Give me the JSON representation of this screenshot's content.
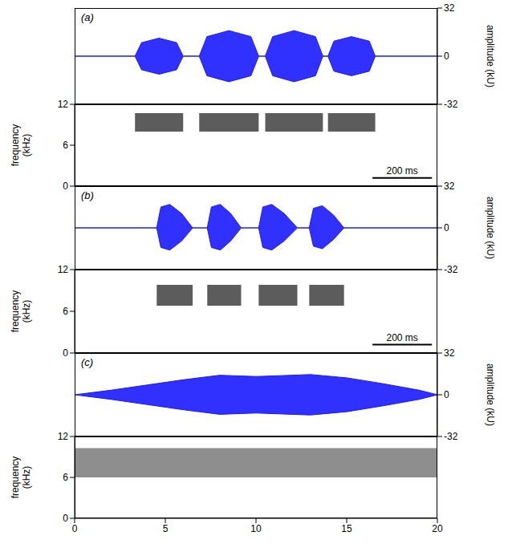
{
  "chart_data": [
    {
      "type": "area",
      "panel_label": "(a)",
      "ylabel": "amplitude (kU)",
      "xlim": [
        0,
        1220
      ],
      "ylim": [
        -32,
        32
      ],
      "yticks": [
        -32,
        0,
        32
      ],
      "tick_labels": "y",
      "color": "#1a1aff",
      "x": [
        0,
        203,
        225,
        284,
        343,
        365,
        419,
        445,
        519,
        593,
        619,
        641,
        666,
        738,
        810,
        835,
        852,
        872,
        931,
        991,
        1011,
        1220
      ],
      "upper": [
        0,
        0,
        9,
        12,
        9,
        0,
        0,
        13,
        17,
        13,
        0,
        0,
        13,
        17,
        13,
        0,
        0,
        10,
        13,
        10,
        0,
        0
      ],
      "lower": [
        0,
        0,
        -9,
        -12,
        -9,
        0,
        0,
        -13,
        -17,
        -13,
        0,
        0,
        -13,
        -17,
        -13,
        0,
        0,
        -10,
        -13,
        -10,
        0,
        0
      ]
    },
    {
      "type": "spectrogram",
      "ylabel": "frequency (kHz)",
      "xlim": [
        0,
        1220
      ],
      "ylim": [
        0,
        12
      ],
      "yticks": [
        0,
        6,
        12
      ],
      "tick_labels": "y",
      "color": "#404040",
      "cells": [
        {
          "t0": 203,
          "t1": 365,
          "f0": 8,
          "f1": 10.7
        },
        {
          "t0": 419,
          "t1": 619,
          "f0": 8,
          "f1": 10.7
        },
        {
          "t0": 641,
          "t1": 835,
          "f0": 8,
          "f1": 10.7
        },
        {
          "t0": 852,
          "t1": 1011,
          "f0": 8,
          "f1": 10.7
        }
      ],
      "scale_bar": {
        "value": 200,
        "label": "200 ms"
      }
    },
    {
      "type": "area",
      "panel_label": "(b)",
      "ylabel": "amplitude (kU)",
      "xlim": [
        0,
        1220
      ],
      "ylim": [
        -32,
        32
      ],
      "yticks": [
        -32,
        0,
        32
      ],
      "tick_labels": "y",
      "color": "#1a1aff",
      "x": [
        0,
        276,
        290,
        320,
        360,
        397,
        446,
        460,
        490,
        525,
        560,
        619,
        633,
        663,
        705,
        749,
        789,
        803,
        833,
        870,
        906,
        1220
      ],
      "upper": [
        0,
        0,
        16,
        18,
        11,
        0,
        0,
        16,
        18,
        11,
        0,
        0,
        16,
        18,
        11,
        0,
        0,
        15,
        17,
        10,
        0,
        0
      ],
      "lower": [
        0,
        0,
        -15,
        -17,
        -10,
        0,
        0,
        -15,
        -17,
        -10,
        0,
        0,
        -15,
        -17,
        -10,
        0,
        0,
        -14,
        -16,
        -9,
        0,
        0
      ]
    },
    {
      "type": "spectrogram",
      "ylabel": "frequency (kHz)",
      "xlim": [
        0,
        1220
      ],
      "ylim": [
        0,
        12
      ],
      "yticks": [
        0,
        6,
        12
      ],
      "tick_labels": "y",
      "color": "#404040",
      "cells": [
        {
          "t0": 276,
          "t1": 397,
          "f0": 6.8,
          "f1": 9.8
        },
        {
          "t0": 446,
          "t1": 560,
          "f0": 6.8,
          "f1": 9.8
        },
        {
          "t0": 619,
          "t1": 749,
          "f0": 6.8,
          "f1": 9.8
        },
        {
          "t0": 789,
          "t1": 906,
          "f0": 6.8,
          "f1": 9.8
        }
      ],
      "scale_bar": {
        "value": 200,
        "label": "200 ms"
      }
    },
    {
      "type": "area",
      "panel_label": "(c)",
      "ylabel": "amplitude (kU)",
      "xlim": [
        0,
        20
      ],
      "ylim": [
        -32,
        32
      ],
      "yticks": [
        -32,
        0,
        32
      ],
      "tick_labels": "y",
      "color": "#1a1aff",
      "x": [
        0,
        2,
        4,
        6,
        8,
        10,
        12,
        13,
        15,
        17,
        19,
        20
      ],
      "upper": [
        0,
        3.5,
        7.5,
        11.5,
        15,
        14,
        15,
        15.5,
        13,
        8.5,
        3.5,
        0
      ],
      "lower": [
        0,
        -3.5,
        -7.5,
        -11.5,
        -15,
        -14,
        -15,
        -15.5,
        -13,
        -8.5,
        -3.5,
        0
      ]
    },
    {
      "type": "spectrogram",
      "ylabel": "frequency (kHz)",
      "xlim": [
        0,
        20
      ],
      "ylim": [
        0,
        12
      ],
      "yticks": [
        0,
        6,
        12
      ],
      "xticks": [
        0,
        5,
        10,
        15,
        20
      ],
      "color": "#7a7a7a",
      "cells": [
        {
          "t0": 0,
          "t1": 20,
          "f0": 6,
          "f1": 10.3
        }
      ]
    }
  ]
}
